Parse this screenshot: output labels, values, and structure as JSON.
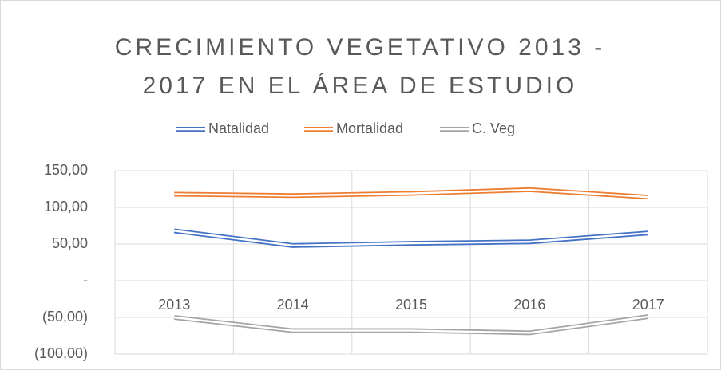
{
  "chart_data": {
    "type": "line",
    "title": "CRECIMIENTO VEGETATIVO 2013 - 2017 EN EL ÁREA DE ESTUDIO",
    "categories": [
      "2013",
      "2014",
      "2015",
      "2016",
      "2017"
    ],
    "series": [
      {
        "name": "Natalidad",
        "color": "#4472c4",
        "values": [
          68,
          48,
          51,
          53,
          65
        ]
      },
      {
        "name": "Mortalidad",
        "color": "#ed7d31",
        "values": [
          118,
          116,
          119,
          124,
          114
        ]
      },
      {
        "name": "C. Veg",
        "color": "#a5a5a5",
        "values": [
          -50,
          -68,
          -68,
          -71,
          -49
        ]
      }
    ],
    "ylim": [
      -100,
      150
    ],
    "yticks": [
      {
        "value": -100,
        "label": "(100,00)"
      },
      {
        "value": -50,
        "label": "(50,00)"
      },
      {
        "value": 0,
        "label": "-"
      },
      {
        "value": 50,
        "label": "50,00"
      },
      {
        "value": 100,
        "label": "100,00"
      },
      {
        "value": 150,
        "label": "150,00"
      }
    ],
    "grid": true,
    "legend": "top"
  }
}
